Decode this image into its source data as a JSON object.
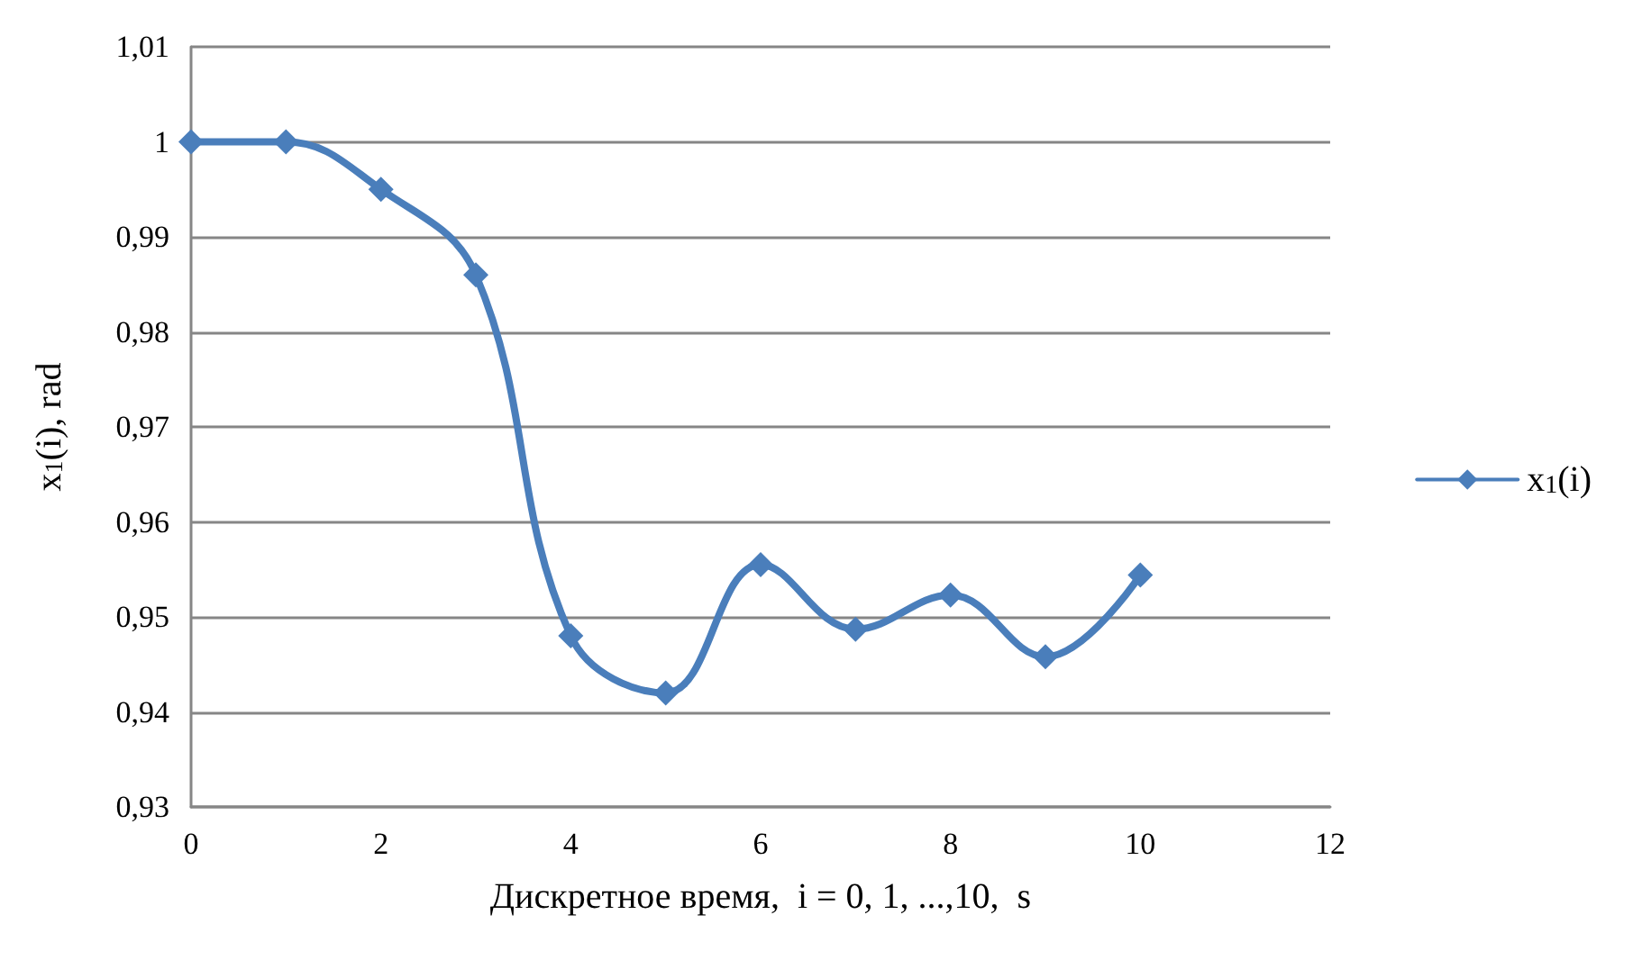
{
  "chart_data": {
    "type": "line",
    "xlabel": "Дискретное время,  i = 0, 1, ...,10,  s",
    "ylabel": "x$_{1}$(i), rad",
    "x": [
      0,
      1,
      2,
      3,
      4,
      5,
      6,
      7,
      8,
      9,
      10
    ],
    "series": [
      {
        "name": "x$_{1}$(i)",
        "color": "#4a7ebb",
        "values": [
          1,
          1,
          0.995,
          0.986,
          0.948,
          0.942,
          0.9555,
          0.9487,
          0.9523,
          0.9458,
          0.9544
        ]
      }
    ],
    "xlim": [
      0,
      12
    ],
    "xticks": [
      0,
      2,
      4,
      6,
      8,
      10,
      12
    ],
    "ylim": [
      0.93,
      1.01
    ],
    "yticks": [
      {
        "value": 0.93,
        "label": "0,93"
      },
      {
        "value": 0.94,
        "label": "0,94"
      },
      {
        "value": 0.95,
        "label": "0,95"
      },
      {
        "value": 0.96,
        "label": "0,96"
      },
      {
        "value": 0.97,
        "label": "0,97"
      },
      {
        "value": 0.98,
        "label": "0,98"
      },
      {
        "value": 0.99,
        "label": "0,99"
      },
      {
        "value": 1,
        "label": "1"
      },
      {
        "value": 1.01,
        "label": "1,01"
      }
    ],
    "grid": "y",
    "legend": "right",
    "marker": "diamond",
    "line_style": "solid"
  }
}
